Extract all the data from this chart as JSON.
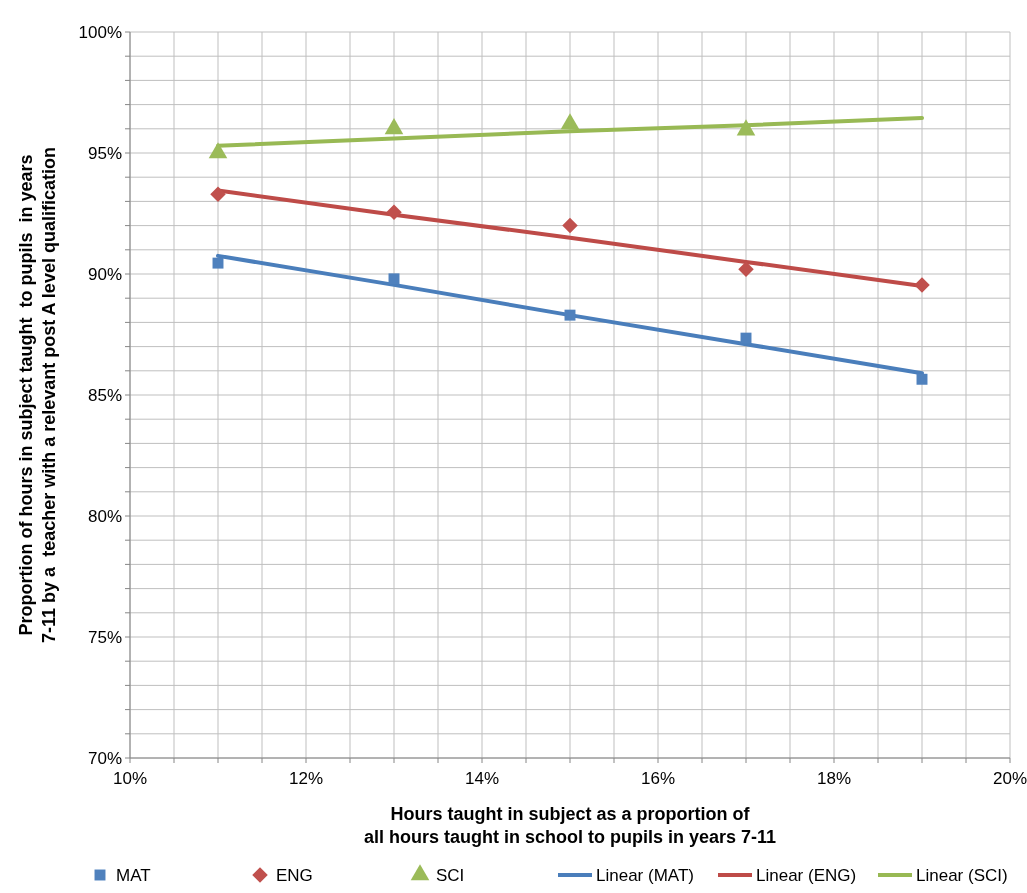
{
  "chart_data": {
    "type": "scatter",
    "xlabel": "Hours taught in subject as a proportion of\nall hours taught in school to pupils in years 7-11",
    "ylabel": "Proportion of hours in subject taught  to pupils  in years\n7-11 by a  teacher with a relevant post A level qualification",
    "x": [
      11,
      13,
      15,
      17,
      19
    ],
    "series": [
      {
        "name": "MAT",
        "color": "#4f81bd",
        "marker": "square",
        "values": [
          90.45,
          89.8,
          88.3,
          87.35,
          85.65
        ]
      },
      {
        "name": "ENG",
        "color": "#c0504d",
        "marker": "diamond",
        "values": [
          93.3,
          92.55,
          92.0,
          90.2,
          89.55
        ]
      },
      {
        "name": "SCI",
        "color": "#9bbb59",
        "marker": "triangle",
        "values": [
          95.0,
          96.0,
          96.2,
          95.95,
          null
        ]
      },
      {
        "name": "Linear (MAT)",
        "type": "line",
        "color": "#4a7ebb",
        "values": [
          90.75,
          89.55,
          88.3,
          87.1,
          85.9
        ]
      },
      {
        "name": "Linear (ENG)",
        "type": "line",
        "color": "#be4b48",
        "values": [
          93.45,
          92.45,
          91.5,
          90.5,
          89.5
        ]
      },
      {
        "name": "Linear (SCI)",
        "type": "line",
        "color": "#98b954",
        "values": [
          95.3,
          95.6,
          95.9,
          96.15,
          96.45
        ]
      }
    ],
    "xlim": [
      10,
      20
    ],
    "xticks": [
      {
        "value": 10,
        "label": "10%"
      },
      {
        "value": 10.5,
        "label": null
      },
      {
        "value": 11,
        "label": null
      },
      {
        "value": 11.5,
        "label": null
      },
      {
        "value": 12,
        "label": "12%"
      },
      {
        "value": 12.5,
        "label": null
      },
      {
        "value": 13,
        "label": null
      },
      {
        "value": 13.5,
        "label": null
      },
      {
        "value": 14,
        "label": "14%"
      },
      {
        "value": 14.5,
        "label": null
      },
      {
        "value": 15,
        "label": null
      },
      {
        "value": 15.5,
        "label": null
      },
      {
        "value": 16,
        "label": "16%"
      },
      {
        "value": 16.5,
        "label": null
      },
      {
        "value": 17,
        "label": null
      },
      {
        "value": 17.5,
        "label": null
      },
      {
        "value": 18,
        "label": "18%"
      },
      {
        "value": 18.5,
        "label": null
      },
      {
        "value": 19,
        "label": null
      },
      {
        "value": 19.5,
        "label": null
      },
      {
        "value": 20,
        "label": "20%"
      }
    ],
    "ylim": [
      70,
      100
    ],
    "yticks": [
      {
        "value": 70,
        "label": "70%"
      },
      {
        "value": 71,
        "label": null
      },
      {
        "value": 72,
        "label": null
      },
      {
        "value": 73,
        "label": null
      },
      {
        "value": 74,
        "label": null
      },
      {
        "value": 75,
        "label": "75%"
      },
      {
        "value": 76,
        "label": null
      },
      {
        "value": 77,
        "label": null
      },
      {
        "value": 78,
        "label": null
      },
      {
        "value": 79,
        "label": null
      },
      {
        "value": 80,
        "label": "80%"
      },
      {
        "value": 81,
        "label": null
      },
      {
        "value": 82,
        "label": null
      },
      {
        "value": 83,
        "label": null
      },
      {
        "value": 84,
        "label": null
      },
      {
        "value": 85,
        "label": "85%"
      },
      {
        "value": 86,
        "label": null
      },
      {
        "value": 87,
        "label": null
      },
      {
        "value": 88,
        "label": null
      },
      {
        "value": 89,
        "label": null
      },
      {
        "value": 90,
        "label": "90%"
      },
      {
        "value": 91,
        "label": null
      },
      {
        "value": 92,
        "label": null
      },
      {
        "value": 93,
        "label": null
      },
      {
        "value": 94,
        "label": null
      },
      {
        "value": 95,
        "label": "95%"
      },
      {
        "value": 96,
        "label": null
      },
      {
        "value": 97,
        "label": null
      },
      {
        "value": 98,
        "label": null
      },
      {
        "value": 99,
        "label": null
      },
      {
        "value": 100,
        "label": "100%"
      }
    ],
    "grid": true,
    "legend": "bottom"
  }
}
